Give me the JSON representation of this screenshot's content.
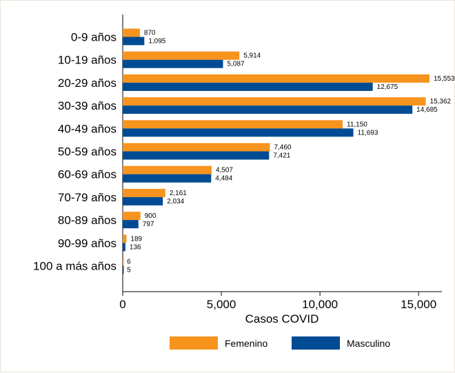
{
  "chart_data": {
    "type": "bar",
    "orientation": "horizontal",
    "categories": [
      "0-9 años",
      "10-19 años",
      "20-29 años",
      "30-39 años",
      "40-49 años",
      "50-59 años",
      "60-69 años",
      "70-79 años",
      "80-89 años",
      "90-99 años",
      "100 a más años"
    ],
    "series": [
      {
        "name": "Femenino",
        "color": "#f7941d",
        "values": [
          870,
          5914,
          15553,
          15362,
          11150,
          7460,
          4507,
          2161,
          900,
          189,
          6
        ],
        "labels": [
          "870",
          "5,914",
          "15,553",
          "15,362",
          "11,150",
          "7,460",
          "4,507",
          "2,161",
          "900",
          "189",
          "6"
        ]
      },
      {
        "name": "Masculino",
        "color": "#004b93",
        "values": [
          1095,
          5087,
          12675,
          14685,
          11693,
          7421,
          4484,
          2034,
          797,
          136,
          5
        ],
        "labels": [
          "1,095",
          "5,087",
          "12,675",
          "14,685",
          "11,693",
          "7,421",
          "4,484",
          "2,034",
          "797",
          "136",
          "5"
        ]
      }
    ],
    "xlabel": "Casos COVID",
    "xlim": [
      0,
      16000
    ],
    "xticks": [
      0,
      5000,
      10000,
      15000
    ],
    "xtick_labels": [
      "0",
      "5,000",
      "10,000",
      "15,000"
    ],
    "grid": false,
    "legend_position": "bottom"
  }
}
